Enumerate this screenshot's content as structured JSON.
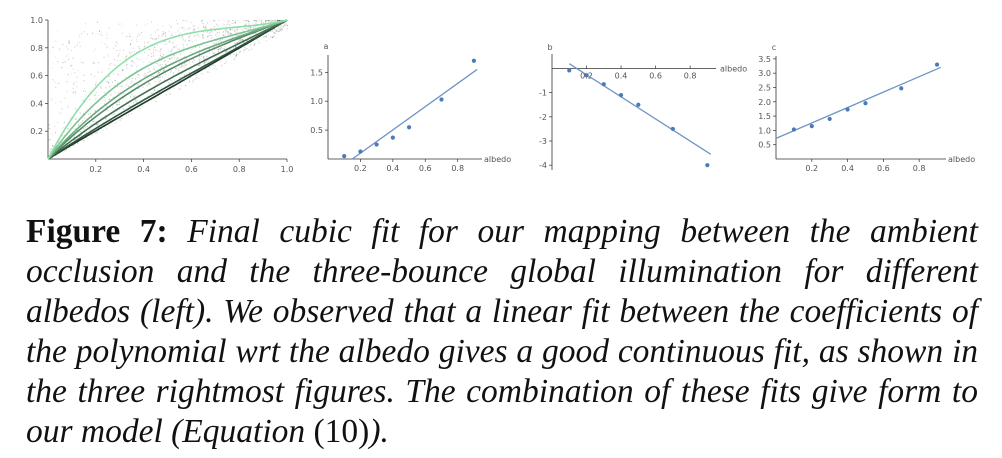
{
  "colors": {
    "axis": "#333333",
    "fit_line": "#6f94c4",
    "point": "#4a7ab8",
    "curve_light": "#8fe0a8",
    "curve_dark": "#1d3a28",
    "cloud": "#000000"
  },
  "chart_data": [
    {
      "type": "scatter",
      "panel": "left",
      "xlim": [
        0,
        1.0
      ],
      "ylim": [
        0,
        1.0
      ],
      "xticks": [
        "0.2",
        "0.4",
        "0.6",
        "0.8",
        "1.0"
      ],
      "yticks": [
        "0.2",
        "0.4",
        "0.6",
        "0.8",
        "1.0"
      ],
      "description": "cubic fits from ambient occlusion to three-bounce global illumination for albedos 0.1 to 0.9; color from dark (low albedo) to light green (high albedo)",
      "series": [
        {
          "albedo": 0.1,
          "a": 0.05,
          "b": -0.08,
          "c": 1.03
        },
        {
          "albedo": 0.2,
          "a": 0.13,
          "b": -0.28,
          "c": 1.15
        },
        {
          "albedo": 0.3,
          "a": 0.25,
          "b": -0.65,
          "c": 1.4
        },
        {
          "albedo": 0.4,
          "a": 0.37,
          "b": -1.1,
          "c": 1.73
        },
        {
          "albedo": 0.5,
          "a": 0.55,
          "b": -1.5,
          "c": 1.95
        },
        {
          "albedo": 0.7,
          "a": 1.03,
          "b": -2.5,
          "c": 2.47
        },
        {
          "albedo": 0.9,
          "a": 1.7,
          "b": -4.0,
          "c": 3.3
        }
      ]
    },
    {
      "type": "scatter",
      "panel": "a",
      "ylabel": "a",
      "xlabel": "albedo",
      "xticks": [
        "0.2",
        "0.4",
        "0.6",
        "0.8"
      ],
      "yticks": [
        "0.5",
        "1.0",
        "1.5"
      ],
      "xlim": [
        0,
        0.95
      ],
      "ylim": [
        0,
        1.8
      ],
      "x": [
        0.1,
        0.2,
        0.3,
        0.4,
        0.5,
        0.7,
        0.9
      ],
      "y": [
        0.05,
        0.13,
        0.25,
        0.37,
        0.55,
        1.03,
        1.7
      ],
      "fit": {
        "x": [
          0.15,
          0.92
        ],
        "y": [
          0.0,
          1.55
        ]
      }
    },
    {
      "type": "scatter",
      "panel": "b",
      "ylabel": "b",
      "xlabel": "albedo",
      "xticks": [
        "0.2",
        "0.4",
        "0.6",
        "0.8"
      ],
      "yticks": [
        "-1",
        "-2",
        "-3",
        "-4"
      ],
      "xlim": [
        0,
        0.95
      ],
      "ylim": [
        -4.2,
        0.6
      ],
      "x": [
        0.1,
        0.2,
        0.3,
        0.4,
        0.5,
        0.7,
        0.9
      ],
      "y": [
        -0.08,
        -0.28,
        -0.65,
        -1.1,
        -1.5,
        -2.5,
        -4.0
      ],
      "fit": {
        "x": [
          0.1,
          0.92
        ],
        "y": [
          0.2,
          -3.55
        ]
      }
    },
    {
      "type": "scatter",
      "panel": "c",
      "ylabel": "c",
      "xlabel": "albedo",
      "xticks": [
        "0.2",
        "0.4",
        "0.6",
        "0.8"
      ],
      "yticks": [
        "0.5",
        "1.0",
        "1.5",
        "2.0",
        "2.5",
        "3.0",
        "3.5"
      ],
      "xlim": [
        0,
        0.95
      ],
      "ylim": [
        0,
        3.6
      ],
      "x": [
        0.1,
        0.2,
        0.3,
        0.4,
        0.5,
        0.7,
        0.9
      ],
      "y": [
        1.03,
        1.15,
        1.4,
        1.73,
        1.95,
        2.47,
        3.3
      ],
      "fit": {
        "x": [
          0.0,
          0.92
        ],
        "y": [
          0.72,
          3.2
        ]
      }
    }
  ],
  "caption": {
    "label": "Figure 7:",
    "text1": "Final cubic fit for our mapping between the ambient occlusion and the three-bounce global illumination for different albedos (left).  We observed that a linear fit between the coefficients of the polynomial wrt the albedo gives a good continuous fit, as shown in the three rightmost figures. The combination of these fits give form to our model (Equation ",
    "eqref": "(10)",
    "text2": ")."
  }
}
